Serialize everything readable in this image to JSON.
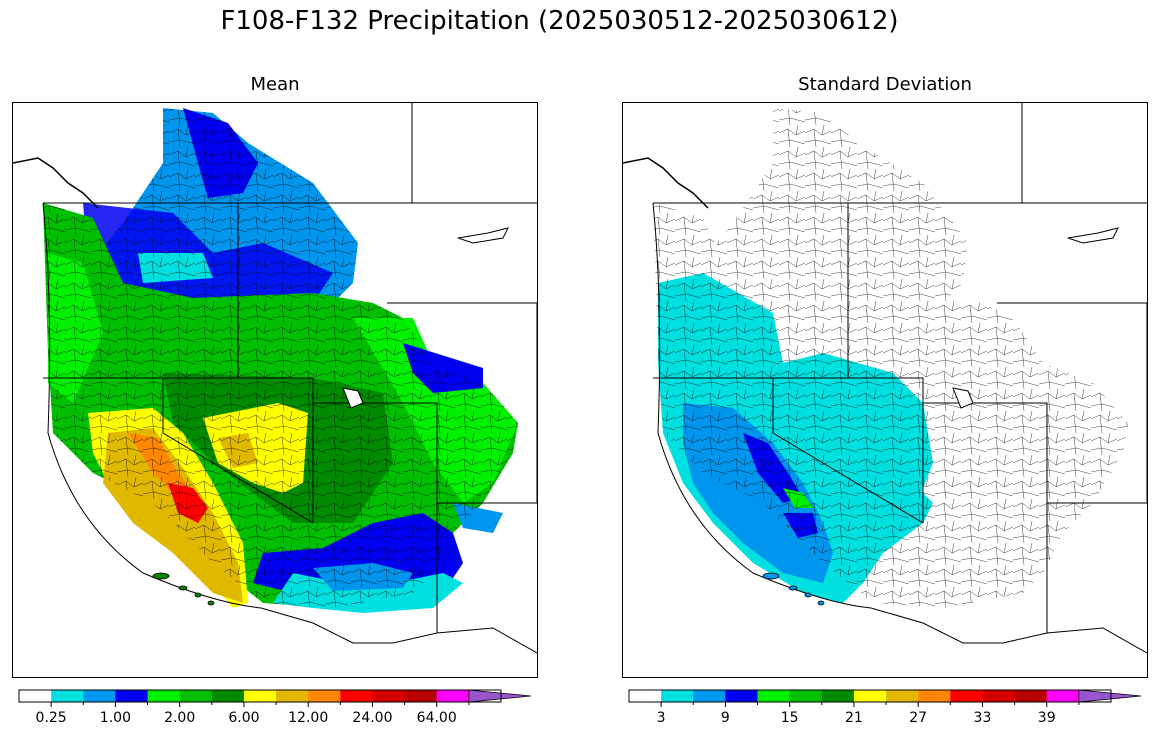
{
  "title": "F108-F132 Precipitation (2025030512-2025030612)",
  "panels": [
    {
      "id": "mean",
      "title": "Mean",
      "colorbar": {
        "colors": [
          "#ffffff",
          "#00e0e0",
          "#0096ee",
          "#0000f0",
          "#00f000",
          "#00bf00",
          "#008a00",
          "#ffff00",
          "#e0b800",
          "#ff8800",
          "#ff0000",
          "#d40000",
          "#b80000",
          "#ff00ff",
          "#9955cc"
        ],
        "tick_labels": [
          "0.25",
          "1.00",
          "2.00",
          "6.00",
          "12.00",
          "24.00",
          "64.00"
        ],
        "extend": "max"
      }
    },
    {
      "id": "stddev",
      "title": "Standard Deviation",
      "colorbar": {
        "colors": [
          "#ffffff",
          "#00e0e0",
          "#0096ee",
          "#0000f0",
          "#00f000",
          "#00bf00",
          "#008a00",
          "#ffff00",
          "#e0b800",
          "#ff8800",
          "#ff0000",
          "#d40000",
          "#b80000",
          "#ff00ff",
          "#9955cc"
        ],
        "tick_labels": [
          "3",
          "9",
          "15",
          "21",
          "27",
          "33",
          "39"
        ],
        "extend": "max"
      }
    }
  ]
}
